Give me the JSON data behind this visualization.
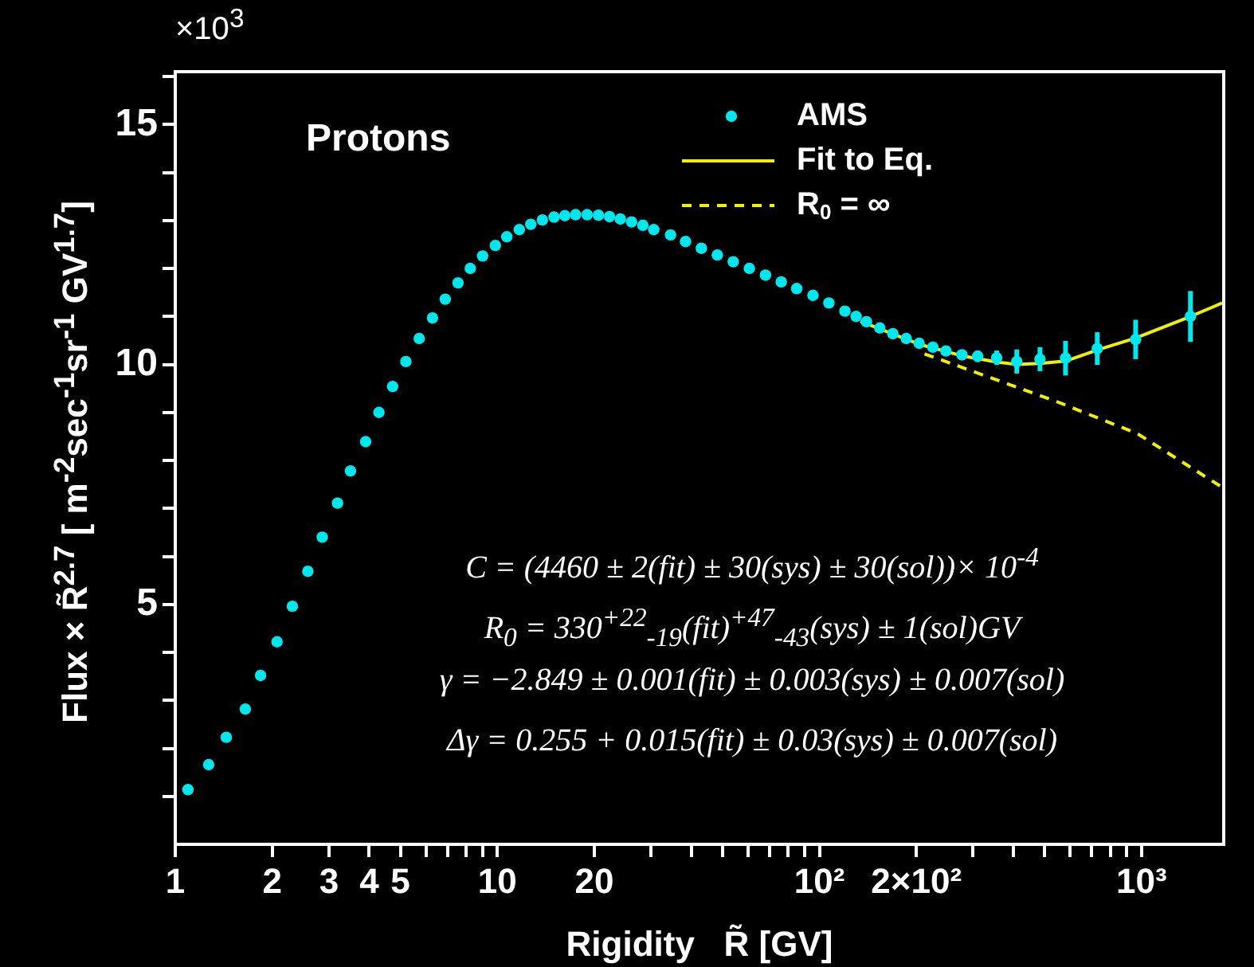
{
  "chart_data": {
    "type": "scatter",
    "title": "Protons",
    "xlabel": "Rigidity   R̃ [GV]",
    "ylabel": "Flux × R̃$^{2.7}$ [ m$^{-2}$sec$^{-1}$sr$^{-1}$ GV$^{1.7}$]",
    "log": "x",
    "grid": false,
    "legend": "top right",
    "xlim": [
      1,
      1800
    ],
    "ylim": [
      0,
      16.1
    ],
    "xticks": [
      1,
      2,
      3,
      4,
      5,
      {
        "value": 6,
        "label": null
      },
      {
        "value": 7,
        "label": null
      },
      {
        "value": 8,
        "label": null
      },
      {
        "value": 9,
        "label": null
      },
      10,
      20,
      {
        "value": 30,
        "label": null
      },
      {
        "value": 40,
        "label": null
      },
      {
        "value": 50,
        "label": null
      },
      {
        "value": 60,
        "label": null
      },
      {
        "value": 70,
        "label": null
      },
      {
        "value": 80,
        "label": null
      },
      {
        "value": 90,
        "label": null
      },
      {
        "value": 100,
        "label": "10²"
      },
      {
        "value": 200,
        "label": "2×10²"
      },
      {
        "value": 300,
        "label": null
      },
      {
        "value": 400,
        "label": null
      },
      {
        "value": 500,
        "label": null
      },
      {
        "value": 600,
        "label": null
      },
      {
        "value": 700,
        "label": null
      },
      {
        "value": 800,
        "label": null
      },
      {
        "value": 900,
        "label": null
      },
      {
        "value": 1000,
        "label": "10³"
      }
    ],
    "yticks": [
      {
        "value": 1,
        "label": null
      },
      {
        "value": 2,
        "label": null
      },
      {
        "value": 3,
        "label": null
      },
      {
        "value": 4,
        "label": null
      },
      5,
      {
        "value": 6,
        "label": null
      },
      {
        "value": 7,
        "label": null
      },
      {
        "value": 8,
        "label": null
      },
      {
        "value": 9,
        "label": null
      },
      10,
      {
        "value": 11,
        "label": null
      },
      {
        "value": 12,
        "label": null
      },
      {
        "value": 13,
        "label": null
      },
      {
        "value": 14,
        "label": null
      },
      15,
      {
        "value": 16,
        "label": null
      }
    ],
    "series": [
      {
        "name": "AMS",
        "type": "scatter",
        "marker": "circle",
        "color": "#00e8ee",
        "x": [
          1.095,
          1.27,
          1.44,
          1.65,
          1.84,
          2.07,
          2.31,
          2.58,
          2.86,
          3.19,
          3.5,
          3.9,
          4.29,
          4.73,
          5.2,
          5.72,
          6.29,
          6.89,
          7.55,
          8.24,
          9.0,
          9.86,
          10.7,
          11.7,
          12.7,
          13.8,
          15.0,
          16.2,
          17.5,
          19.0,
          20.6,
          22.3,
          24.1,
          26.1,
          28.3,
          30.6,
          34.5,
          38.4,
          43,
          48.2,
          54,
          60.6,
          68,
          76.1,
          85,
          95.5,
          107,
          120,
          130,
          140,
          154,
          169,
          186,
          204,
          225,
          247,
          277,
          310,
          355,
          410,
          484,
          581,
          729,
          959,
          1419
        ],
        "values": [
          1.14,
          1.66,
          2.23,
          2.82,
          3.52,
          4.22,
          4.96,
          5.69,
          6.4,
          7.11,
          7.78,
          8.39,
          9.0,
          9.54,
          10.06,
          10.54,
          10.97,
          11.36,
          11.7,
          12.0,
          12.26,
          12.48,
          12.66,
          12.81,
          12.92,
          13.01,
          13.07,
          13.1,
          13.12,
          13.12,
          13.11,
          13.08,
          13.03,
          12.97,
          12.9,
          12.81,
          12.7,
          12.56,
          12.42,
          12.28,
          12.14,
          12.0,
          11.86,
          11.72,
          11.58,
          11.44,
          11.28,
          11.11,
          11.0,
          10.89,
          10.76,
          10.64,
          10.54,
          10.44,
          10.36,
          10.28,
          10.2,
          10.17,
          10.14,
          10.06,
          10.11,
          10.13,
          10.33,
          10.52,
          11.0
        ],
        "errors": [
          null,
          null,
          null,
          null,
          null,
          null,
          null,
          null,
          null,
          null,
          null,
          null,
          null,
          null,
          null,
          null,
          null,
          null,
          null,
          null,
          null,
          null,
          null,
          null,
          null,
          null,
          null,
          null,
          null,
          null,
          null,
          null,
          null,
          null,
          null,
          null,
          null,
          null,
          null,
          null,
          null,
          null,
          null,
          null,
          null,
          null,
          null,
          null,
          null,
          null,
          null,
          null,
          null,
          null,
          null,
          null,
          0.1,
          0.12,
          0.15,
          0.25,
          0.25,
          0.36,
          0.34,
          0.41,
          0.53
        ]
      },
      {
        "name": "Fit to Eq.",
        "type": "line",
        "line_style": "solid",
        "color": "#f0f000",
        "x": [
          134,
          204,
          277,
          355,
          410,
          484,
          581,
          729,
          959,
          1419,
          1780
        ],
        "values": [
          10.9,
          10.42,
          10.18,
          10.05,
          10.0,
          10.02,
          10.07,
          10.3,
          10.55,
          11.0,
          11.28
        ]
      },
      {
        "name": "R$_{0}$ = ∞",
        "type": "line",
        "line_style": "dashed",
        "color": "#f0f000",
        "x": [
          212,
          548,
          970,
          1780
        ],
        "values": [
          10.22,
          9.22,
          8.56,
          7.44
        ]
      }
    ],
    "annotations": [
      "×10$^{3}$",
      "C = (4460 ± 2(fit) ± 30(sys) ± 30(sol))×  10$^{-4}$",
      "R$_{0}$ = 330$^{+22}$$_{-19}$(fit)$^{+47}$$_{-43}$(sys) ± 1(sol)GV",
      "γ = −2.849 ± 0.001(fit) ± 0.003(sys) ± 0.007(sol)",
      "Δγ = 0.255 + 0.015(fit) ± 0.03(sys) ± 0.007(sol)"
    ]
  }
}
